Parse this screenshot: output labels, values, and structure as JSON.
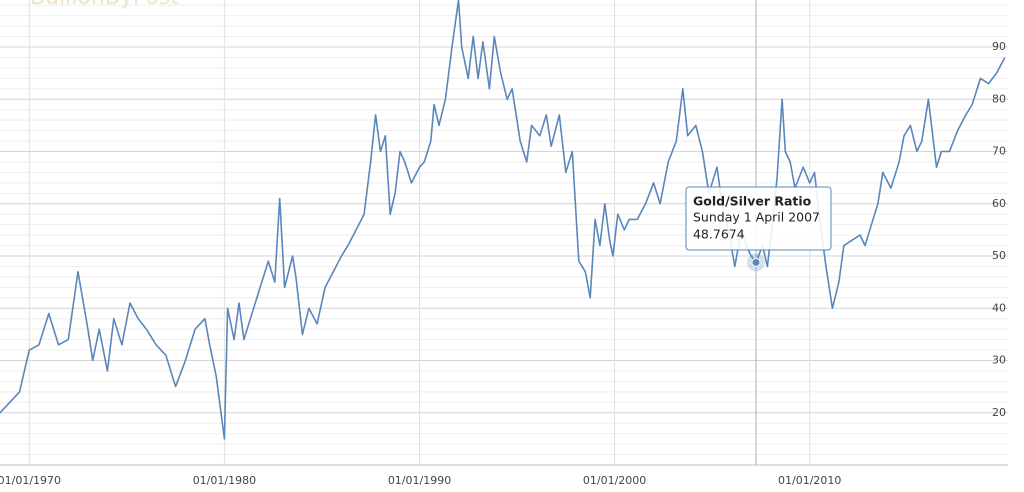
{
  "chart_data": {
    "type": "line",
    "logo": "BullionByPost",
    "xlim": [
      "1968-07-01",
      "2020-03-01"
    ],
    "xticks": [
      {
        "value": "1970-01-01",
        "label": "01/01/1970"
      },
      {
        "value": "1980-01-01",
        "label": "01/01/1980"
      },
      {
        "value": "1990-01-01",
        "label": "01/01/1990"
      },
      {
        "value": "2000-01-01",
        "label": "01/01/2000"
      },
      {
        "value": "2010-01-01",
        "label": "01/01/2010"
      }
    ],
    "ylim": [
      10,
      99
    ],
    "yticks": [
      20,
      30,
      40,
      50,
      60,
      70,
      80,
      90
    ],
    "yminorticks": [
      12,
      14,
      16,
      18,
      22,
      24,
      26,
      28,
      32,
      34,
      36,
      38,
      42,
      44,
      46,
      48,
      52,
      54,
      56,
      58,
      62,
      64,
      66,
      68,
      72,
      74,
      76,
      78,
      82,
      84,
      86,
      88,
      92,
      94,
      96,
      98
    ],
    "grid": true,
    "x": [
      "1968-07-01",
      "1969-01-01",
      "1969-07-01",
      "1970-01-01",
      "1970-07-01",
      "1971-01-01",
      "1971-07-01",
      "1972-01-01",
      "1972-07-01",
      "1973-01-01",
      "1973-04-01",
      "1973-08-01",
      "1974-01-01",
      "1974-05-01",
      "1974-10-01",
      "1975-03-01",
      "1975-08-01",
      "1976-01-01",
      "1976-07-01",
      "1977-01-01",
      "1977-07-01",
      "1978-01-01",
      "1978-07-01",
      "1979-01-01",
      "1979-04-01",
      "1979-08-01",
      "1980-01-01",
      "1980-03-01",
      "1980-07-01",
      "1980-10-01",
      "1981-01-01",
      "1981-07-01",
      "1982-01-01",
      "1982-04-01",
      "1982-08-01",
      "1982-11-01",
      "1983-02-01",
      "1983-07-01",
      "1983-09-01",
      "1984-01-01",
      "1984-05-01",
      "1984-10-01",
      "1985-03-01",
      "1985-08-01",
      "1986-01-01",
      "1986-05-01",
      "1986-10-01",
      "1987-03-01",
      "1987-07-01",
      "1987-10-01",
      "1988-01-01",
      "1988-04-01",
      "1988-07-01",
      "1988-10-01",
      "1989-01-01",
      "1989-04-01",
      "1989-08-01",
      "1990-01-01",
      "1990-04-01",
      "1990-08-01",
      "1990-10-01",
      "1991-01-01",
      "1991-05-01",
      "1991-09-01",
      "1992-01-01",
      "1992-03-01",
      "1992-07-01",
      "1992-10-01",
      "1993-01-01",
      "1993-04-01",
      "1993-08-01",
      "1993-11-01",
      "1994-03-01",
      "1994-07-01",
      "1994-10-01",
      "1995-03-01",
      "1995-07-01",
      "1995-10-01",
      "1996-03-01",
      "1996-07-01",
      "1996-10-01",
      "1997-03-01",
      "1997-07-01",
      "1997-11-01",
      "1998-03-01",
      "1998-07-01",
      "1998-10-01",
      "1999-01-01",
      "1999-04-01",
      "1999-07-01",
      "1999-10-01",
      "1999-12-01",
      "2000-03-01",
      "2000-07-01",
      "2000-10-01",
      "2001-03-01",
      "2001-08-01",
      "2002-01-01",
      "2002-05-01",
      "2002-10-01",
      "2003-03-01",
      "2003-07-01",
      "2003-10-01",
      "2004-03-01",
      "2004-07-01",
      "2004-11-01",
      "2005-04-01",
      "2005-08-01",
      "2005-11-01",
      "2006-03-01",
      "2006-07-01",
      "2006-10-01",
      "2007-01-01",
      "2007-04-01",
      "2007-08-01",
      "2007-11-01",
      "2008-03-01",
      "2008-05-01",
      "2008-08-01",
      "2008-10-01",
      "2009-01-01",
      "2009-04-01",
      "2009-09-01",
      "2010-01-01",
      "2010-04-01",
      "2010-08-01",
      "2010-11-01",
      "2011-03-01",
      "2011-07-01",
      "2011-10-01",
      "2012-03-01",
      "2012-08-01",
      "2012-11-01",
      "2013-03-01",
      "2013-07-01",
      "2013-10-01",
      "2014-03-01",
      "2014-08-01",
      "2014-11-01",
      "2015-03-01",
      "2015-07-01",
      "2015-10-01",
      "2016-02-01",
      "2016-07-01",
      "2016-10-01",
      "2017-03-01",
      "2017-08-01",
      "2018-01-01",
      "2018-05-01",
      "2018-10-01",
      "2019-03-01",
      "2019-08-01",
      "2020-01-01"
    ],
    "series": [
      {
        "name": "Gold/Silver Ratio",
        "color": "#5a87bb",
        "values": [
          20,
          22,
          24,
          32,
          33,
          39,
          33,
          34,
          47,
          36,
          30,
          36,
          28,
          38,
          33,
          41,
          38,
          36,
          33,
          31,
          25,
          30,
          36,
          38,
          33,
          27,
          15,
          40,
          34,
          41,
          34,
          40,
          46,
          49,
          45,
          61,
          44,
          50,
          46,
          35,
          40,
          37,
          44,
          47,
          50,
          52,
          55,
          58,
          68,
          77,
          70,
          73,
          58,
          62,
          70,
          68,
          64,
          67,
          68,
          72,
          79,
          75,
          80,
          90,
          99,
          90,
          84,
          92,
          84,
          91,
          82,
          92,
          85,
          80,
          82,
          72,
          68,
          75,
          73,
          77,
          71,
          77,
          66,
          70,
          49,
          47,
          42,
          57,
          52,
          60,
          53,
          50,
          58,
          55,
          57,
          57,
          60,
          64,
          60,
          68,
          72,
          82,
          73,
          75,
          70,
          62,
          67,
          58,
          55,
          48,
          55,
          52,
          50,
          48.7674,
          52,
          48,
          59,
          65,
          80,
          70,
          68,
          63,
          67,
          64,
          66,
          55,
          48,
          40,
          45,
          52,
          53,
          54,
          52,
          56,
          60,
          66,
          63,
          68,
          73,
          75,
          70,
          72,
          80,
          67,
          70,
          70,
          74,
          77,
          79,
          84,
          83,
          85,
          88
        ]
      }
    ],
    "tooltip": {
      "x": "2007-04-01",
      "date": "Sunday 1 April 2007"
    }
  }
}
